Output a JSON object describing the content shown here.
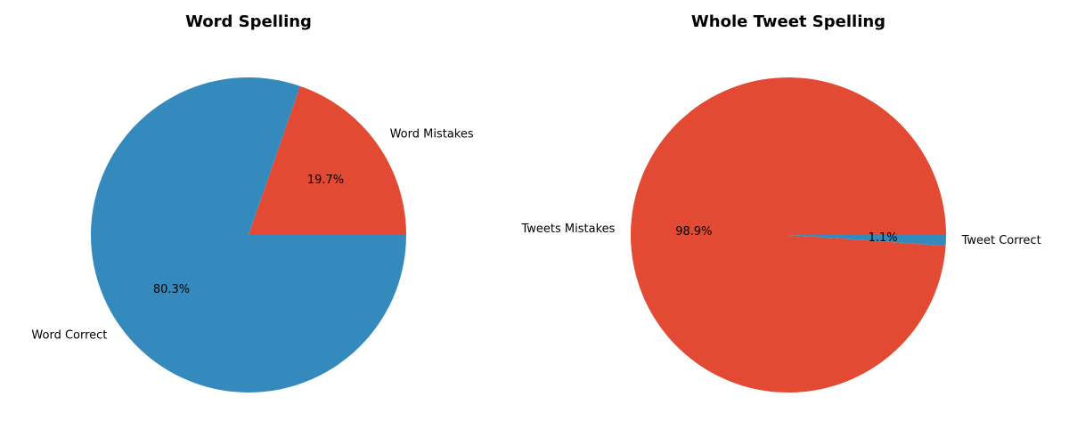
{
  "chart_data": [
    {
      "type": "pie",
      "title": "Word Spelling",
      "slices": [
        {
          "label": "Word Mistakes",
          "value": 19.7,
          "pct_label": "19.7%",
          "color": "#e24a33"
        },
        {
          "label": "Word Correct",
          "value": 80.3,
          "pct_label": "80.3%",
          "color": "#348abd"
        }
      ],
      "start_angle_deg": 0,
      "direction": "counterclockwise"
    },
    {
      "type": "pie",
      "title": "Whole Tweet Spelling",
      "slices": [
        {
          "label": "Tweets Mistakes",
          "value": 98.9,
          "pct_label": "98.9%",
          "color": "#e24a33"
        },
        {
          "label": "Tweet Correct",
          "value": 1.1,
          "pct_label": "1.1%",
          "color": "#348abd"
        }
      ],
      "start_angle_deg": 0,
      "direction": "counterclockwise"
    }
  ]
}
